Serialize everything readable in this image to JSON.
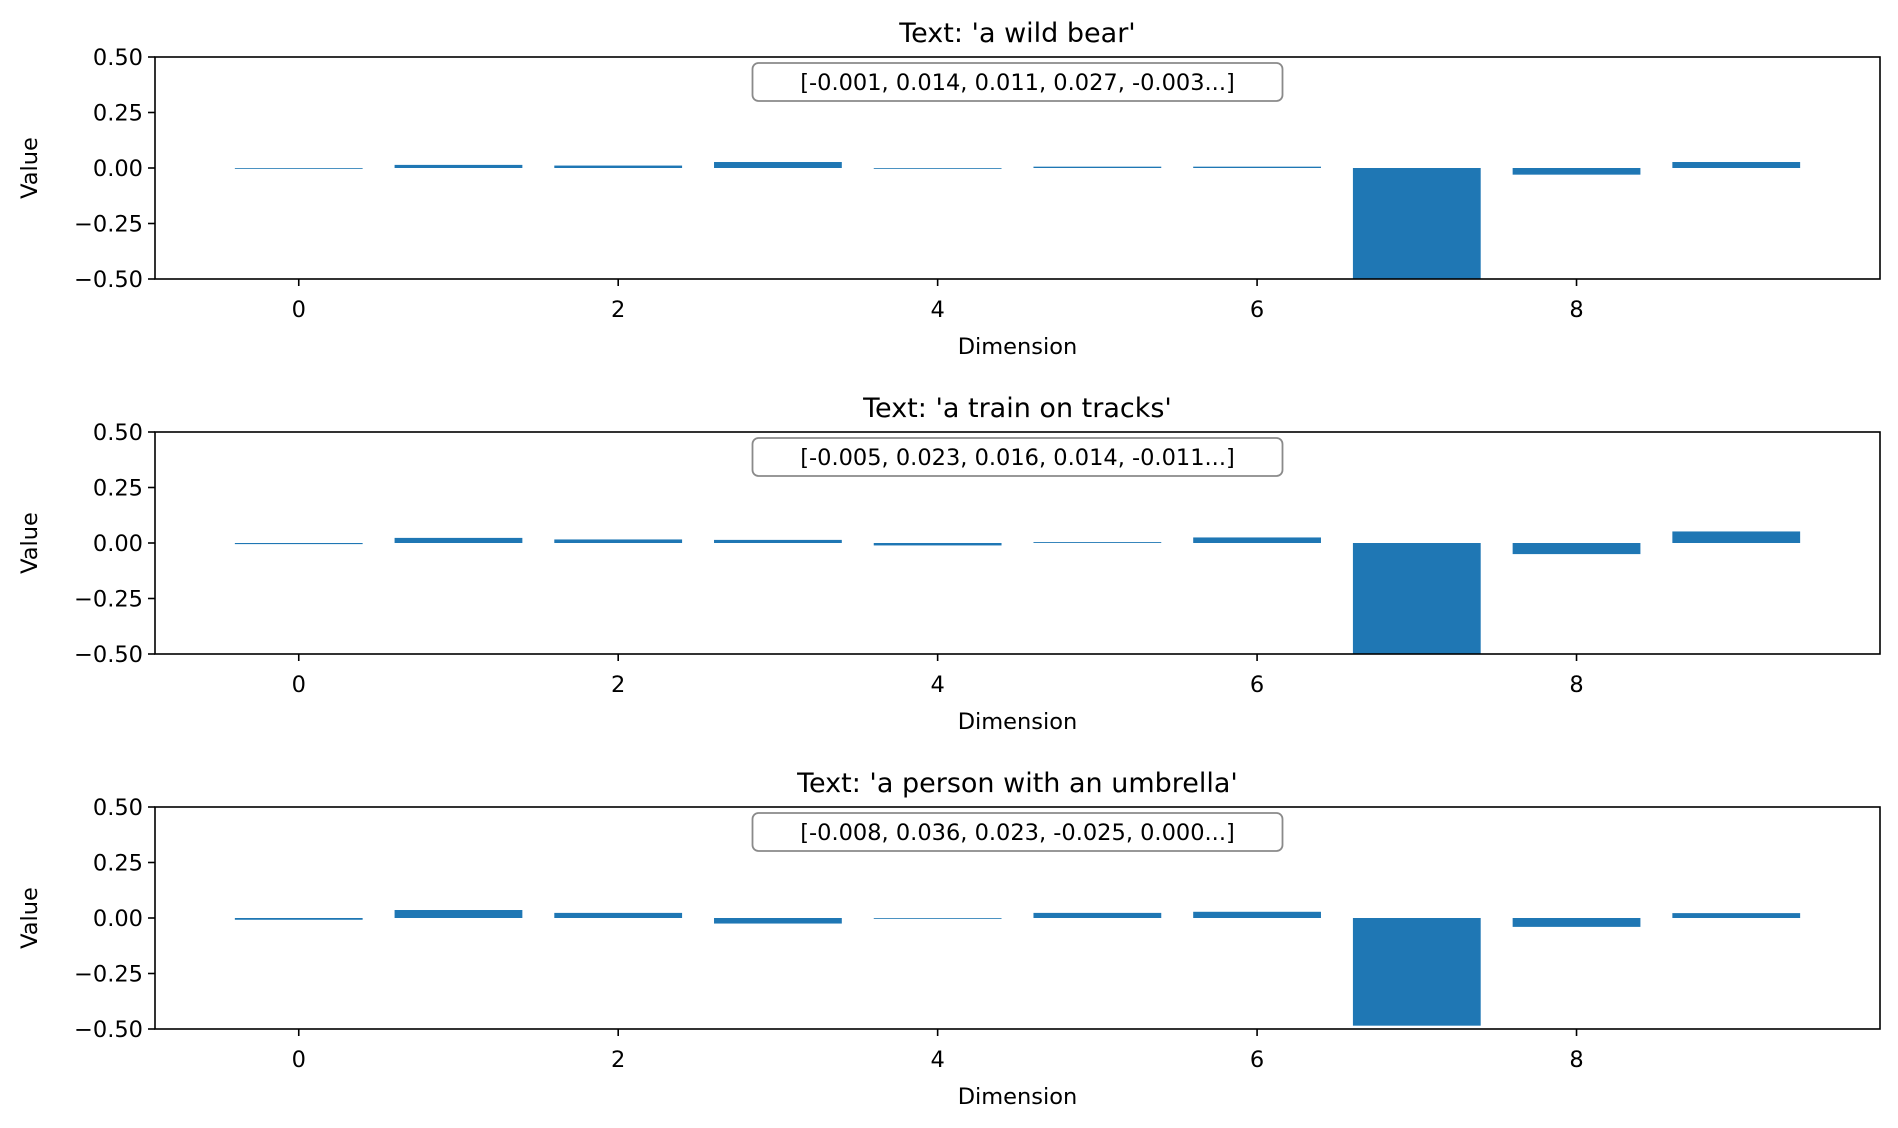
{
  "chart_data": [
    {
      "type": "bar",
      "title": "Text: 'a wild bear'",
      "xlabel": "Dimension",
      "ylabel": "Value",
      "categories": [
        0,
        1,
        2,
        3,
        4,
        5,
        6,
        7,
        8,
        9
      ],
      "values": [
        -0.001,
        0.014,
        0.011,
        0.027,
        -0.003,
        0.006,
        0.006,
        -0.5,
        -0.03,
        0.027
      ],
      "ylim": [
        -0.5,
        0.5
      ],
      "xlim": [
        -0.9,
        9.9
      ],
      "yticks": [
        "0.50",
        "0.25",
        "0.00",
        "−0.25",
        "−0.50"
      ],
      "xticks": [
        "0",
        "2",
        "4",
        "6",
        "8"
      ],
      "annotation": "[-0.001, 0.014, 0.011, 0.027, -0.003...]",
      "grid": false,
      "bar_color": "#1f77b4"
    },
    {
      "type": "bar",
      "title": "Text: 'a train on tracks'",
      "xlabel": "Dimension",
      "ylabel": "Value",
      "categories": [
        0,
        1,
        2,
        3,
        4,
        5,
        6,
        7,
        8,
        9
      ],
      "values": [
        -0.005,
        0.023,
        0.016,
        0.014,
        -0.011,
        0.004,
        0.025,
        -0.5,
        -0.05,
        0.052
      ],
      "ylim": [
        -0.5,
        0.5
      ],
      "xlim": [
        -0.9,
        9.9
      ],
      "yticks": [
        "0.50",
        "0.25",
        "0.00",
        "−0.25",
        "−0.50"
      ],
      "xticks": [
        "0",
        "2",
        "4",
        "6",
        "8"
      ],
      "annotation": "[-0.005, 0.023, 0.016, 0.014, -0.011...]",
      "grid": false,
      "bar_color": "#1f77b4"
    },
    {
      "type": "bar",
      "title": "Text: 'a person with an umbrella'",
      "xlabel": "Dimension",
      "ylabel": "Value",
      "categories": [
        0,
        1,
        2,
        3,
        4,
        5,
        6,
        7,
        8,
        9
      ],
      "values": [
        -0.008,
        0.036,
        0.023,
        -0.025,
        0.0,
        0.023,
        0.028,
        -0.485,
        -0.04,
        0.022
      ],
      "ylim": [
        -0.5,
        0.5
      ],
      "xlim": [
        -0.9,
        9.9
      ],
      "yticks": [
        "0.50",
        "0.25",
        "0.00",
        "−0.25",
        "−0.50"
      ],
      "xticks": [
        "0",
        "2",
        "4",
        "6",
        "8"
      ],
      "annotation": "[-0.008, 0.036, 0.023, -0.025, 0.000...]",
      "grid": false,
      "bar_color": "#1f77b4"
    }
  ]
}
